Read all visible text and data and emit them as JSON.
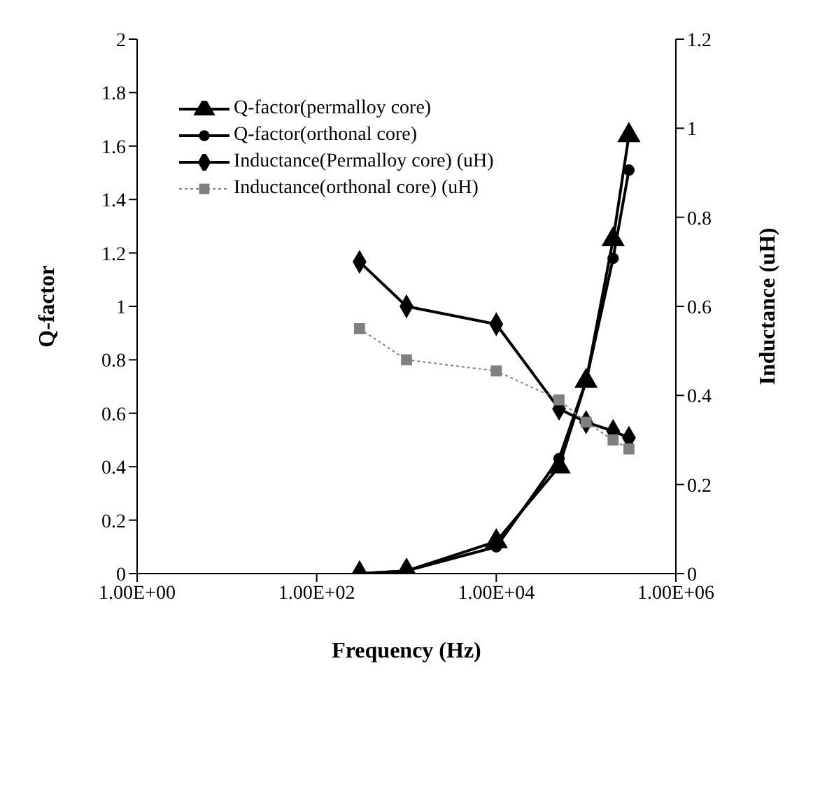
{
  "chart_data": {
    "type": "line",
    "xlabel": "Frequency (Hz)",
    "ylabel": "Q-factor",
    "y2label": "Inductance (uH)",
    "log": "x",
    "grid": false,
    "legend": "top left",
    "x": [
      300,
      1000,
      10000,
      50000,
      100000,
      200000,
      300000
    ],
    "xlim": [
      1,
      1000000
    ],
    "xticks": [
      {
        "value": 1,
        "label": "1.00E+00"
      },
      {
        "value": 100,
        "label": "1.00E+02"
      },
      {
        "value": 10000,
        "label": "1.00E+04"
      },
      {
        "value": 1000000,
        "label": "1.00E+06"
      }
    ],
    "ylim": [
      0,
      2
    ],
    "yticks": [
      0,
      0.2,
      0.4,
      0.6,
      0.8,
      1,
      1.2,
      1.4,
      1.6,
      1.8,
      2
    ],
    "y2lim": [
      0,
      1.2
    ],
    "y2ticks": [
      0,
      0.2,
      0.4,
      0.6,
      0.8,
      1,
      1.2
    ],
    "series": [
      {
        "name": "Q-factor(permalloy core)",
        "color": "#000000",
        "marker": "triangle",
        "line_style": "solid",
        "values": [
          0,
          0.01,
          0.12,
          0.4,
          0.72,
          1.25,
          1.64
        ]
      },
      {
        "name": "Q-factor(orthonal core)",
        "color": "#000000",
        "marker": "circle",
        "line_style": "solid",
        "values": [
          0,
          0.01,
          0.1,
          0.43,
          0.72,
          1.18,
          1.51
        ]
      },
      {
        "name": "Inductance(Permalloy core) (uH)",
        "color": "#000000",
        "marker": "diamond",
        "line_style": "solid",
        "axis": "y2",
        "values": [
          0.7,
          0.6,
          0.56,
          0.37,
          0.34,
          0.32,
          0.305
        ]
      },
      {
        "name": "Inductance(orthonal core) (uH)",
        "color": "#808080",
        "marker": "square",
        "line_style": "dotted",
        "axis": "y2",
        "values": [
          0.55,
          0.48,
          0.455,
          0.39,
          0.34,
          0.3,
          0.28
        ]
      }
    ]
  }
}
